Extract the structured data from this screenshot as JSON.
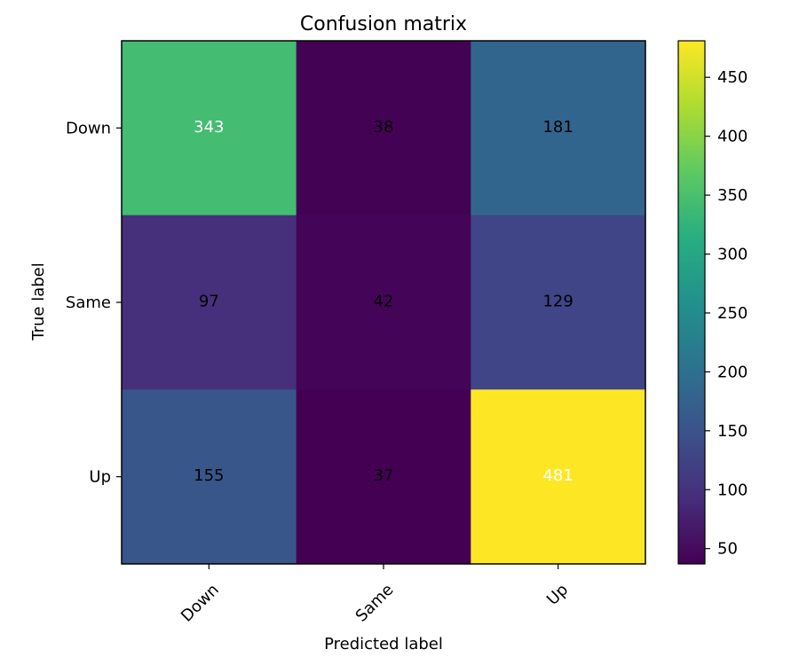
{
  "chart_data": {
    "type": "heatmap",
    "title": "Confusion matrix",
    "xlabel": "Predicted label",
    "ylabel": "True label",
    "x_categories": [
      "Down",
      "Same",
      "Up"
    ],
    "y_categories": [
      "Down",
      "Same",
      "Up"
    ],
    "values": [
      [
        343,
        38,
        181
      ],
      [
        97,
        42,
        129
      ],
      [
        155,
        37,
        481
      ]
    ],
    "colormap": "viridis",
    "colorbar": {
      "min": 37,
      "max": 481,
      "ticks": [
        50,
        100,
        150,
        200,
        250,
        300,
        350,
        400,
        450
      ]
    },
    "x_tick_rotation_deg": -45,
    "grid": false
  }
}
